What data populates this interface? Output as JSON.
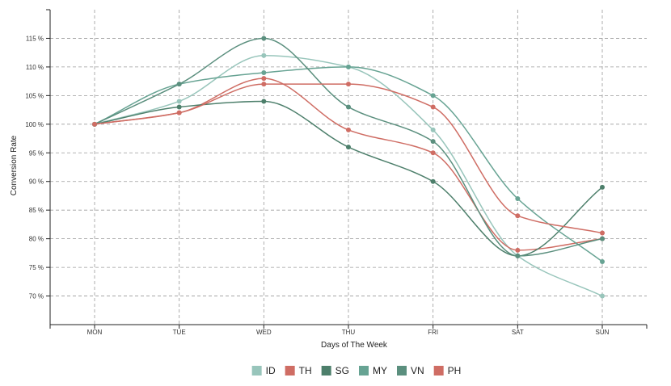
{
  "chart_data": {
    "type": "line",
    "categories": [
      "MON",
      "TUE",
      "WED",
      "THU",
      "FRI",
      "SAT",
      "SUN"
    ],
    "xlabel": "Days of The Week",
    "ylabel": "Conversion Rate",
    "ylim": [
      65,
      120
    ],
    "yticks": [
      70,
      75,
      80,
      85,
      90,
      95,
      100,
      105,
      110,
      115
    ],
    "ytick_suffix": " %",
    "grid": true,
    "legend_position": "bottom-center",
    "series": [
      {
        "name": "ID",
        "color": "#98c5bb",
        "marker": "square",
        "values": [
          100,
          104,
          112,
          110,
          99,
          77,
          70
        ]
      },
      {
        "name": "TH",
        "color": "#cf6d64",
        "marker": "circle",
        "values": [
          100,
          102,
          108,
          99,
          95,
          78,
          80
        ]
      },
      {
        "name": "SG",
        "color": "#4d7f6b",
        "marker": "cross",
        "values": [
          100,
          103,
          104,
          96,
          90,
          77,
          89
        ]
      },
      {
        "name": "MY",
        "color": "#67a393",
        "marker": "circle",
        "values": [
          100,
          107,
          109,
          110,
          105,
          87,
          76
        ]
      },
      {
        "name": "VN",
        "color": "#5b8f7e",
        "marker": "circle",
        "values": [
          100,
          107,
          115,
          103,
          97,
          77,
          80
        ]
      },
      {
        "name": "PH",
        "color": "#cf6d64",
        "marker": "circle",
        "values": [
          100,
          102,
          107,
          107,
          103,
          84,
          81
        ]
      }
    ]
  }
}
